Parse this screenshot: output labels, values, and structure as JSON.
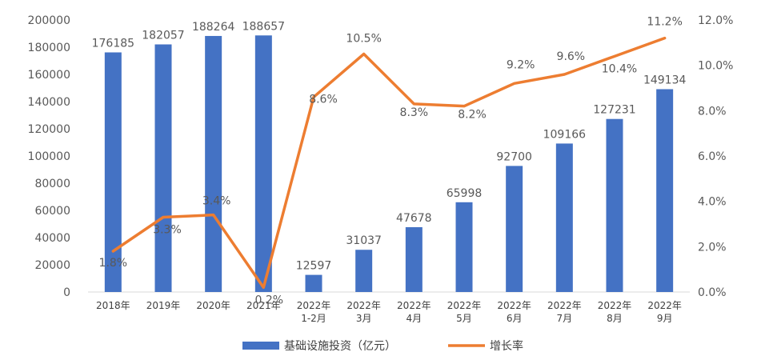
{
  "chart_data": {
    "type": "bar",
    "categories": [
      [
        "2018年"
      ],
      [
        "2019年"
      ],
      [
        "2020年"
      ],
      [
        "2021年"
      ],
      [
        "2022年",
        "1-2月"
      ],
      [
        "2022年",
        "3月"
      ],
      [
        "2022年",
        "4月"
      ],
      [
        "2022年",
        "5月"
      ],
      [
        "2022年",
        "6月"
      ],
      [
        "2022年",
        "7月"
      ],
      [
        "2022年",
        "8月"
      ],
      [
        "2022年",
        "9月"
      ]
    ],
    "series": [
      {
        "name": "基础设施投资（亿元）",
        "type": "bar",
        "axis": "left",
        "color": "#4472C4",
        "values": [
          176185,
          182057,
          188264,
          188657,
          12597,
          31037,
          47678,
          65998,
          92700,
          109166,
          127231,
          149134
        ],
        "labels": [
          "176185",
          "182057",
          "188264",
          "188657",
          "12597",
          "31037",
          "47678",
          "65998",
          "92700",
          "109166",
          "127231",
          "149134"
        ]
      },
      {
        "name": "增长率",
        "type": "line",
        "axis": "right",
        "color": "#ED7D31",
        "values": [
          1.8,
          3.3,
          3.4,
          0.2,
          8.6,
          10.5,
          8.3,
          8.2,
          9.2,
          9.6,
          10.4,
          11.2
        ],
        "labels": [
          "1.8%",
          "3.3%",
          "3.4%",
          "0.2%",
          "8.6%",
          "10.5%",
          "8.3%",
          "8.2%",
          "9.2%",
          "9.6%",
          "10.4%",
          "11.2%"
        ]
      }
    ],
    "y_left": {
      "lim": [
        0,
        200000
      ],
      "ticks": [
        "0",
        "20000",
        "40000",
        "60000",
        "80000",
        "100000",
        "120000",
        "140000",
        "160000",
        "180000",
        "200000"
      ]
    },
    "y_right": {
      "lim": [
        0,
        12
      ],
      "ticks": [
        "0.0%",
        "2.0%",
        "4.0%",
        "6.0%",
        "8.0%",
        "10.0%",
        "12.0%"
      ]
    },
    "grid": false,
    "legend_position": "bottom"
  }
}
